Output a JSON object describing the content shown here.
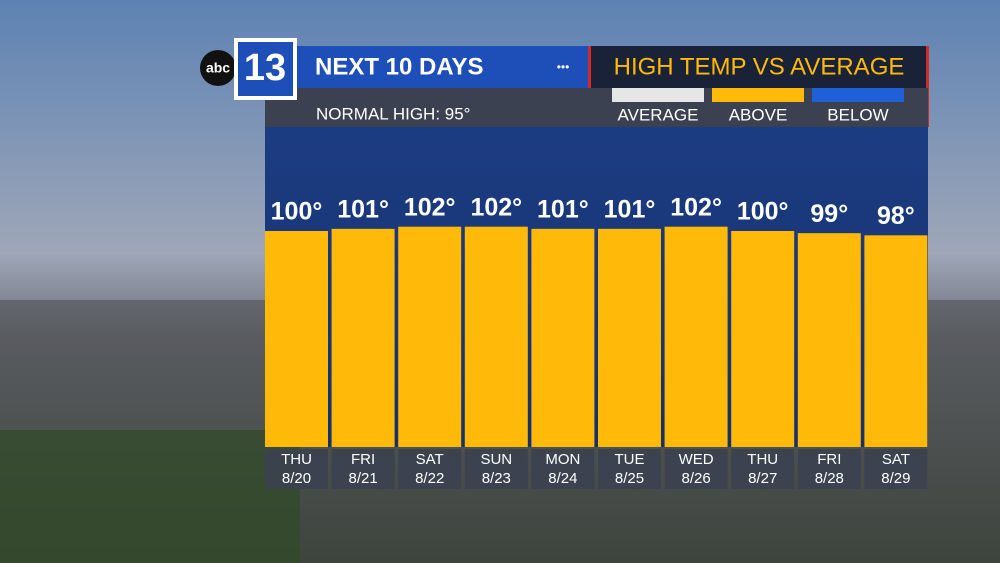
{
  "logo": {
    "station": "abc",
    "channel": "13"
  },
  "header": {
    "title": "NEXT 10 DAYS",
    "dots": "•••",
    "subtitle": "HIGH TEMP VS AVERAGE"
  },
  "normal_high": "NORMAL HIGH: 95°",
  "chart_data": {
    "type": "bar",
    "categories": [
      "THU",
      "FRI",
      "SAT",
      "SUN",
      "MON",
      "TUE",
      "WED",
      "THU",
      "FRI",
      "SAT"
    ],
    "dates": [
      "8/20",
      "8/21",
      "8/22",
      "8/23",
      "8/24",
      "8/25",
      "8/26",
      "8/27",
      "8/28",
      "8/29"
    ],
    "values": [
      100,
      101,
      102,
      102,
      101,
      101,
      102,
      100,
      99,
      98
    ],
    "value_labels": [
      "100°",
      "101°",
      "102°",
      "102°",
      "101°",
      "101°",
      "102°",
      "100°",
      "99°",
      "98°"
    ],
    "color": "#ffb908",
    "legend": [
      {
        "name": "AVERAGE",
        "color": "#e6e6e6"
      },
      {
        "name": "ABOVE",
        "color": "#ffb908"
      },
      {
        "name": "BELOW",
        "color": "#1f5fd8"
      }
    ]
  }
}
